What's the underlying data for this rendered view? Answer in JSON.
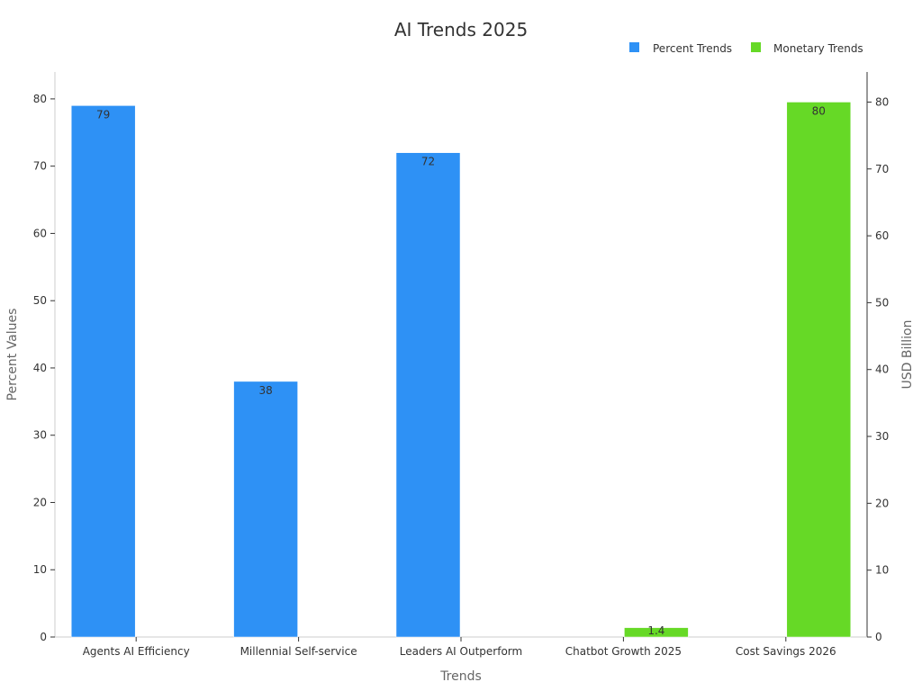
{
  "chart_data": {
    "type": "bar",
    "title": "AI Trends 2025",
    "xlabel": "Trends",
    "ylabel": "Percent Values",
    "y2label": "USD Billion",
    "categories": [
      "Agents AI Efficiency",
      "Millennial Self-service",
      "Leaders AI Outperform",
      "Chatbot Growth 2025",
      "Cost Savings 2026"
    ],
    "series": [
      {
        "name": "Percent Trends",
        "axis": "left",
        "color": "#2e91f5",
        "values": [
          79,
          38,
          72,
          null,
          null
        ],
        "labels": [
          "79",
          "38",
          "72",
          "",
          ""
        ]
      },
      {
        "name": "Monetary Trends",
        "axis": "right",
        "color": "#66d926",
        "values": [
          null,
          null,
          null,
          1.4,
          80
        ],
        "labels": [
          "",
          "",
          "",
          "1.4",
          "80"
        ]
      }
    ],
    "ylim": [
      0,
      84
    ],
    "y2lim": [
      0,
      84.5
    ],
    "yticks": [
      0,
      10,
      20,
      30,
      40,
      50,
      60,
      70,
      80
    ],
    "y2ticks": [
      0,
      10,
      20,
      30,
      40,
      50,
      60,
      70,
      80
    ],
    "legend": {
      "position": "top-right"
    },
    "grid": false
  }
}
